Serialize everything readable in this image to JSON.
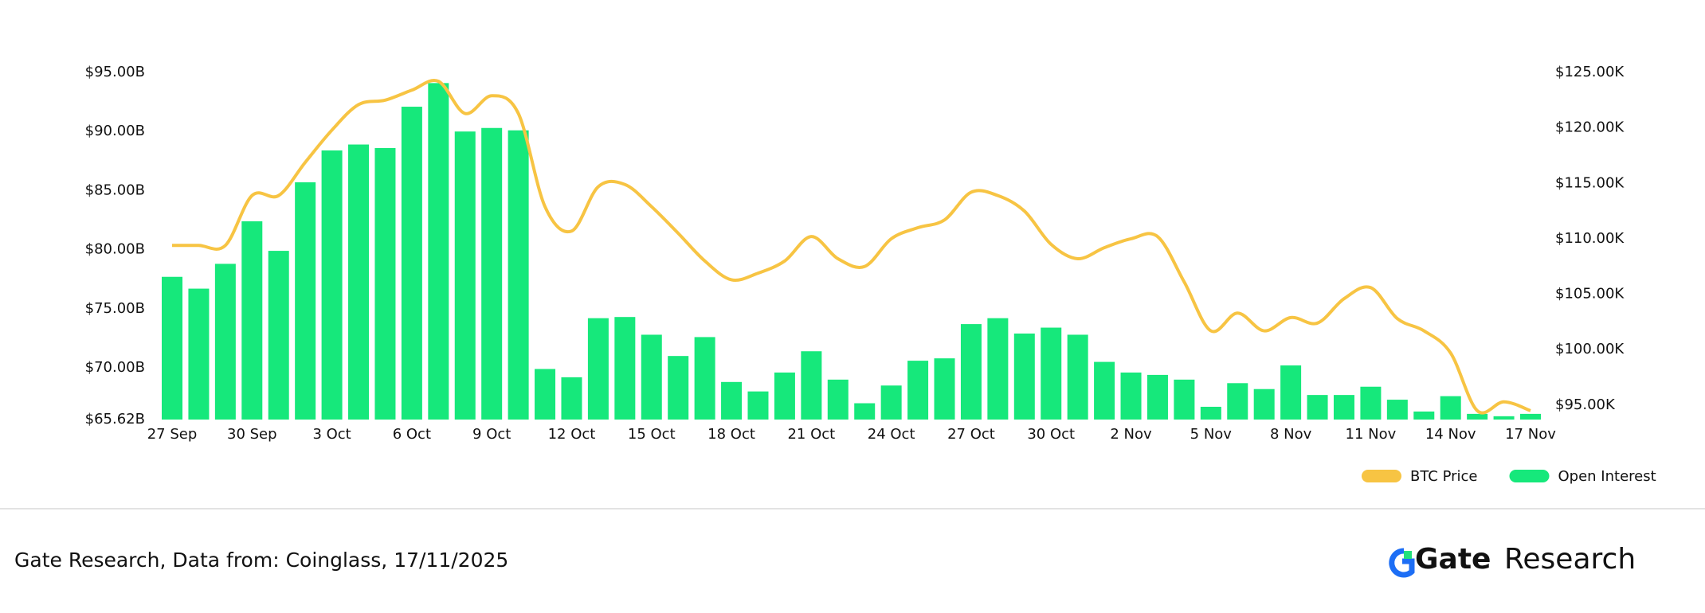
{
  "chart_data": {
    "type": "bar",
    "categories": [
      "27 Sep",
      null,
      null,
      "30 Sep",
      null,
      null,
      "3 Oct",
      null,
      null,
      "6 Oct",
      null,
      null,
      "9 Oct",
      null,
      null,
      "12 Oct",
      null,
      null,
      "15 Oct",
      null,
      null,
      "18 Oct",
      null,
      null,
      "21 Oct",
      null,
      null,
      "24 Oct",
      null,
      null,
      "27 Oct",
      null,
      null,
      "30 Oct",
      null,
      null,
      "2 Nov",
      null,
      null,
      "5 Nov",
      null,
      null,
      "8 Nov",
      null,
      null,
      "11 Nov",
      null,
      null,
      "14 Nov",
      null,
      null,
      "17 Nov"
    ],
    "series": [
      {
        "name": "BTC Price",
        "type": "line",
        "axis": "y2",
        "color": "#f7c443",
        "values": [
          109.4,
          109.4,
          109.4,
          113.9,
          113.9,
          116.9,
          119.8,
          122.1,
          122.5,
          123.4,
          124.2,
          121.3,
          122.9,
          121.3,
          112.9,
          110.7,
          114.7,
          114.9,
          112.9,
          110.5,
          108.0,
          106.3,
          106.9,
          108.0,
          110.2,
          108.2,
          107.5,
          110.0,
          111.0,
          111.7,
          114.2,
          113.9,
          112.5,
          109.5,
          108.2,
          109.2,
          110.0,
          110.2,
          106.1,
          101.7,
          103.3,
          101.7,
          102.9,
          102.4,
          104.6,
          105.6,
          102.8,
          101.7,
          99.7,
          94.5,
          95.3,
          94.5
        ]
      },
      {
        "name": "Open Interest",
        "type": "bar",
        "color": "#16e87b",
        "values": [
          77.7,
          76.7,
          78.8,
          82.4,
          79.9,
          85.7,
          88.4,
          88.9,
          88.6,
          92.1,
          94.1,
          90.0,
          90.3,
          90.1,
          69.9,
          69.2,
          74.2,
          74.3,
          72.8,
          71.0,
          72.6,
          68.8,
          68.0,
          69.6,
          71.4,
          69.0,
          67.0,
          68.5,
          70.6,
          70.8,
          73.7,
          74.2,
          72.9,
          73.4,
          72.8,
          70.5,
          69.6,
          69.4,
          69.0,
          66.7,
          68.7,
          68.2,
          70.2,
          67.7,
          67.7,
          68.4,
          67.3,
          66.3,
          67.6,
          66.1,
          65.9,
          66.1
        ]
      }
    ],
    "ylim": [
      65.62,
      95
    ],
    "yticks": [
      {
        "value": 65.62,
        "label": "$65.62B"
      },
      {
        "value": 70,
        "label": "$70.00B"
      },
      {
        "value": 75,
        "label": "$75.00B"
      },
      {
        "value": 80,
        "label": "$80.00B"
      },
      {
        "value": 85,
        "label": "$85.00B"
      },
      {
        "value": 90,
        "label": "$90.00B"
      },
      {
        "value": 95,
        "label": "$95.00B"
      }
    ],
    "y2lim": [
      93.7,
      125
    ],
    "y2ticks": [
      {
        "value": 95,
        "label": "$95.00K"
      },
      {
        "value": 100,
        "label": "$100.00K"
      },
      {
        "value": 105,
        "label": "$105.00K"
      },
      {
        "value": 110,
        "label": "$110.00K"
      },
      {
        "value": 115,
        "label": "$115.00K"
      },
      {
        "value": 120,
        "label": "$120.00K"
      },
      {
        "value": 125,
        "label": "$125.00K"
      }
    ],
    "legend": "bottom-right"
  },
  "footer": {
    "source": "Gate Research, Data from: Coinglass, 17/11/2025",
    "logo_bold": "Gate",
    "logo_text": "Research"
  }
}
